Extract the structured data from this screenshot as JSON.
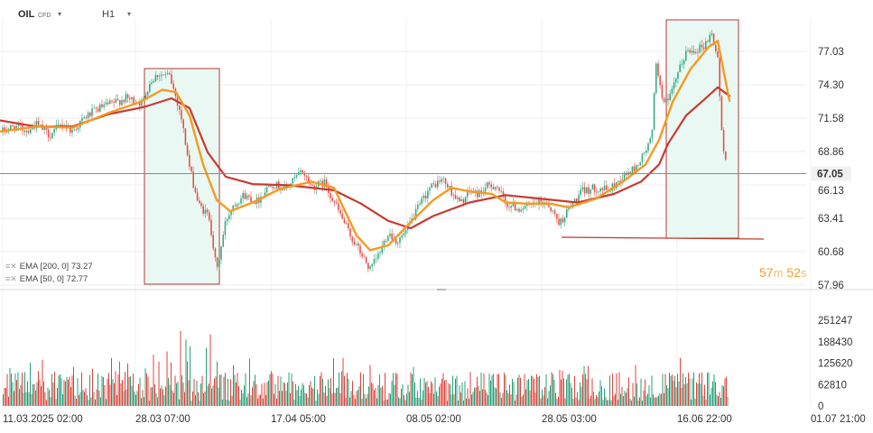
{
  "header": {
    "symbol": "OIL",
    "instrument_type": "CFD",
    "timeframe": "H1"
  },
  "indicators": [
    {
      "label": "EMA [200,  0] 73.27",
      "color": "#c93a32"
    },
    {
      "label": "EMA [50,  0] 72.77",
      "color": "#f59a22"
    }
  ],
  "timer": {
    "minutes": "57",
    "minutes_unit": "m",
    "seconds": "52",
    "seconds_unit": "s"
  },
  "colors": {
    "up": "#26a17a",
    "down": "#e0423a",
    "ema200": "#c93a32",
    "ema50": "#f59a22",
    "highlight_fill": "#e9f8f2",
    "highlight_border": "#b33a3a"
  },
  "chart_data": {
    "type": "candlestick",
    "price_axis": {
      "ticks": [
        "77.03",
        "74.30",
        "71.58",
        "68.86",
        "66.13",
        "63.41",
        "60.68",
        "57.96"
      ],
      "ylim": [
        57.96,
        79.5
      ]
    },
    "current_price": "67.05",
    "time_axis": {
      "ticks": [
        "11.03.2025  02:00",
        "28.03  07:00",
        "17.04  05:00",
        "08.05  02:00",
        "28.05  03:00",
        "16.06  22:00",
        "01.07  21:00"
      ]
    },
    "volume_axis": {
      "ticks": [
        "251247",
        "188430",
        "125620",
        "62810",
        "0"
      ],
      "ylim": [
        0,
        251247
      ]
    },
    "price_path": [
      [
        0,
        70.4
      ],
      [
        15,
        70.9
      ],
      [
        30,
        70.6
      ],
      [
        40,
        71.1
      ],
      [
        55,
        70.2
      ],
      [
        70,
        71.2
      ],
      [
        80,
        70.5
      ],
      [
        95,
        71.7
      ],
      [
        110,
        72.4
      ],
      [
        125,
        72.8
      ],
      [
        140,
        73.2
      ],
      [
        158,
        72.8
      ],
      [
        165,
        74.4
      ],
      [
        175,
        75.2
      ],
      [
        188,
        75.0
      ],
      [
        200,
        72.0
      ],
      [
        210,
        67.5
      ],
      [
        220,
        64.5
      ],
      [
        232,
        63.5
      ],
      [
        240,
        59.0
      ],
      [
        250,
        63.2
      ],
      [
        258,
        64.5
      ],
      [
        270,
        65.3
      ],
      [
        285,
        64.8
      ],
      [
        300,
        66.3
      ],
      [
        315,
        65.8
      ],
      [
        325,
        66.5
      ],
      [
        335,
        67.3
      ],
      [
        345,
        66.0
      ],
      [
        360,
        66.3
      ],
      [
        375,
        64.0
      ],
      [
        388,
        62.0
      ],
      [
        400,
        60.5
      ],
      [
        410,
        59.2
      ],
      [
        420,
        60.5
      ],
      [
        430,
        62.3
      ],
      [
        440,
        61.5
      ],
      [
        450,
        62.3
      ],
      [
        460,
        63.8
      ],
      [
        475,
        65.8
      ],
      [
        490,
        66.6
      ],
      [
        500,
        65.6
      ],
      [
        510,
        64.6
      ],
      [
        520,
        65.6
      ],
      [
        530,
        65.4
      ],
      [
        540,
        66.0
      ],
      [
        550,
        66.1
      ],
      [
        560,
        64.6
      ],
      [
        575,
        64.2
      ],
      [
        590,
        64.5
      ],
      [
        605,
        64.8
      ],
      [
        620,
        63.0
      ],
      [
        630,
        64.2
      ],
      [
        645,
        65.6
      ],
      [
        660,
        65.9
      ],
      [
        675,
        65.7
      ],
      [
        690,
        66.8
      ],
      [
        705,
        67.6
      ],
      [
        715,
        68.9
      ],
      [
        722,
        70.0
      ],
      [
        727,
        76.5
      ],
      [
        732,
        73.5
      ],
      [
        740,
        72.8
      ],
      [
        750,
        75.0
      ],
      [
        760,
        77.0
      ],
      [
        770,
        77.2
      ],
      [
        780,
        77.5
      ],
      [
        788,
        78.5
      ],
      [
        795,
        76.5
      ],
      [
        800,
        69.5
      ],
      [
        806,
        67.3
      ]
    ],
    "ema200_path": [
      [
        0,
        71.4
      ],
      [
        40,
        70.9
      ],
      [
        80,
        70.9
      ],
      [
        120,
        71.9
      ],
      [
        160,
        72.5
      ],
      [
        190,
        73.2
      ],
      [
        210,
        72.4
      ],
      [
        230,
        68.8
      ],
      [
        250,
        66.8
      ],
      [
        280,
        66.2
      ],
      [
        320,
        66.1
      ],
      [
        370,
        65.7
      ],
      [
        400,
        64.6
      ],
      [
        430,
        63.2
      ],
      [
        455,
        62.6
      ],
      [
        480,
        63.6
      ],
      [
        520,
        64.7
      ],
      [
        560,
        65.3
      ],
      [
        600,
        65.0
      ],
      [
        640,
        64.7
      ],
      [
        680,
        65.4
      ],
      [
        710,
        66.4
      ],
      [
        730,
        67.8
      ],
      [
        740,
        69.5
      ],
      [
        760,
        71.8
      ],
      [
        780,
        73.1
      ],
      [
        795,
        74.1
      ],
      [
        808,
        73.4
      ]
    ],
    "ema50_path": [
      [
        0,
        70.5
      ],
      [
        40,
        70.9
      ],
      [
        80,
        70.8
      ],
      [
        120,
        72.0
      ],
      [
        155,
        72.9
      ],
      [
        180,
        73.9
      ],
      [
        195,
        73.7
      ],
      [
        210,
        71.8
      ],
      [
        225,
        67.8
      ],
      [
        240,
        64.9
      ],
      [
        255,
        64.0
      ],
      [
        280,
        64.7
      ],
      [
        310,
        65.8
      ],
      [
        345,
        66.4
      ],
      [
        370,
        65.9
      ],
      [
        395,
        62.0
      ],
      [
        410,
        60.8
      ],
      [
        430,
        61.2
      ],
      [
        455,
        63.1
      ],
      [
        480,
        64.9
      ],
      [
        500,
        65.9
      ],
      [
        520,
        65.6
      ],
      [
        545,
        65.4
      ],
      [
        560,
        64.7
      ],
      [
        585,
        64.6
      ],
      [
        610,
        64.6
      ],
      [
        630,
        64.3
      ],
      [
        660,
        65.0
      ],
      [
        690,
        66.4
      ],
      [
        715,
        67.8
      ],
      [
        730,
        69.8
      ],
      [
        745,
        72.9
      ],
      [
        765,
        75.6
      ],
      [
        785,
        77.4
      ],
      [
        795,
        77.9
      ],
      [
        808,
        73.0
      ]
    ]
  }
}
